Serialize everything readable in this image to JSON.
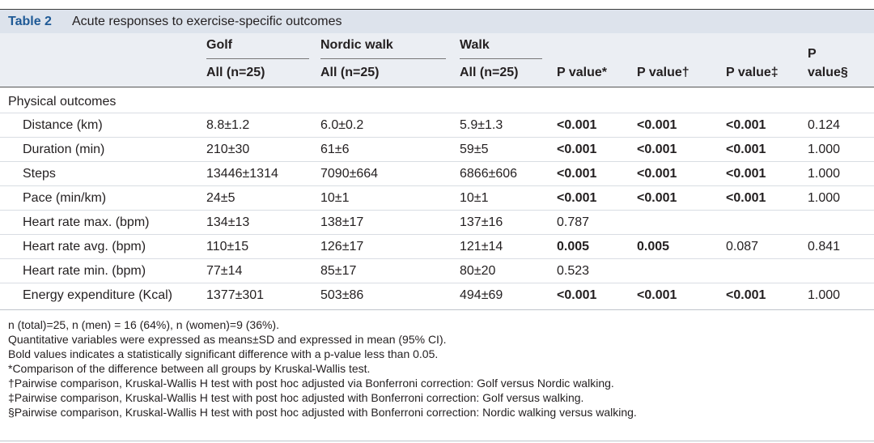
{
  "table": {
    "number": "Table 2",
    "caption": "Acute responses to exercise-specific outcomes",
    "groups": [
      "Golf",
      "Nordic walk",
      "Walk"
    ],
    "subheaders": [
      "All (n=25)",
      "All (n=25)",
      "All (n=25)"
    ],
    "pvalue_headers": [
      "P value*",
      "P value†",
      "P value‡",
      "P",
      "value§"
    ],
    "section": "Physical outcomes",
    "rows": [
      {
        "label": "Distance (km)",
        "golf": "8.8±1.2",
        "nordic": "6.0±0.2",
        "walk": "5.9±1.3",
        "p1": "<0.001",
        "p2": "<0.001",
        "p3": "<0.001",
        "p4": "0.124"
      },
      {
        "label": "Duration (min)",
        "golf": "210±30",
        "nordic": "61±6",
        "walk": "59±5",
        "p1": "<0.001",
        "p2": "<0.001",
        "p3": "<0.001",
        "p4": "1.000"
      },
      {
        "label": "Steps",
        "golf": "13446±1314",
        "nordic": "7090±664",
        "walk": "6866±606",
        "p1": "<0.001",
        "p2": "<0.001",
        "p3": "<0.001",
        "p4": "1.000"
      },
      {
        "label": "Pace (min/km)",
        "golf": "24±5",
        "nordic": "10±1",
        "walk": "10±1",
        "p1": "<0.001",
        "p2": "<0.001",
        "p3": "<0.001",
        "p4": "1.000"
      },
      {
        "label": "Heart rate max. (bpm)",
        "golf": "134±13",
        "nordic": "138±17",
        "walk": "137±16",
        "p1": "0.787",
        "p2": "",
        "p3": "",
        "p4": ""
      },
      {
        "label": "Heart rate avg. (bpm)",
        "golf": "110±15",
        "nordic": "126±17",
        "walk": "121±14",
        "p1": "0.005",
        "p2": "0.005",
        "p3": "0.087",
        "p4": "0.841"
      },
      {
        "label": "Heart rate min. (bpm)",
        "golf": "77±14",
        "nordic": "85±17",
        "walk": "80±20",
        "p1": "0.523",
        "p2": "",
        "p3": "",
        "p4": ""
      },
      {
        "label": "Energy expenditure (Kcal)",
        "golf": "1377±301",
        "nordic": "503±86",
        "walk": "494±69",
        "p1": "<0.001",
        "p2": "<0.001",
        "p3": "<0.001",
        "p4": "1.000"
      }
    ],
    "bold_flags": [
      [
        true,
        true,
        true,
        false
      ],
      [
        true,
        true,
        true,
        false
      ],
      [
        true,
        true,
        true,
        false
      ],
      [
        true,
        true,
        true,
        false
      ],
      [
        false,
        false,
        false,
        false
      ],
      [
        true,
        true,
        false,
        false
      ],
      [
        false,
        false,
        false,
        false
      ],
      [
        true,
        true,
        true,
        false
      ]
    ],
    "notes": [
      "n (total)=25, n (men) = 16 (64%), n (women)=9 (36%).",
      "Quantitative variables were expressed as means±SD and expressed in mean (95% CI).",
      "Bold values indicates a statistically significant difference with a p-value less than 0.05.",
      "*Comparison of the difference between all groups by Kruskal-Wallis test.",
      "†Pairwise comparison, Kruskal-Wallis H test with post hoc adjusted via Bonferroni correction: Golf versus Nordic walking.",
      "‡Pairwise comparison, Kruskal-Wallis H test with post hoc adjusted with Bonferroni correction: Golf versus walking.",
      "§Pairwise comparison, Kruskal-Wallis H test with post hoc adjusted with Bonferroni correction: Nordic walking versus walking."
    ]
  }
}
